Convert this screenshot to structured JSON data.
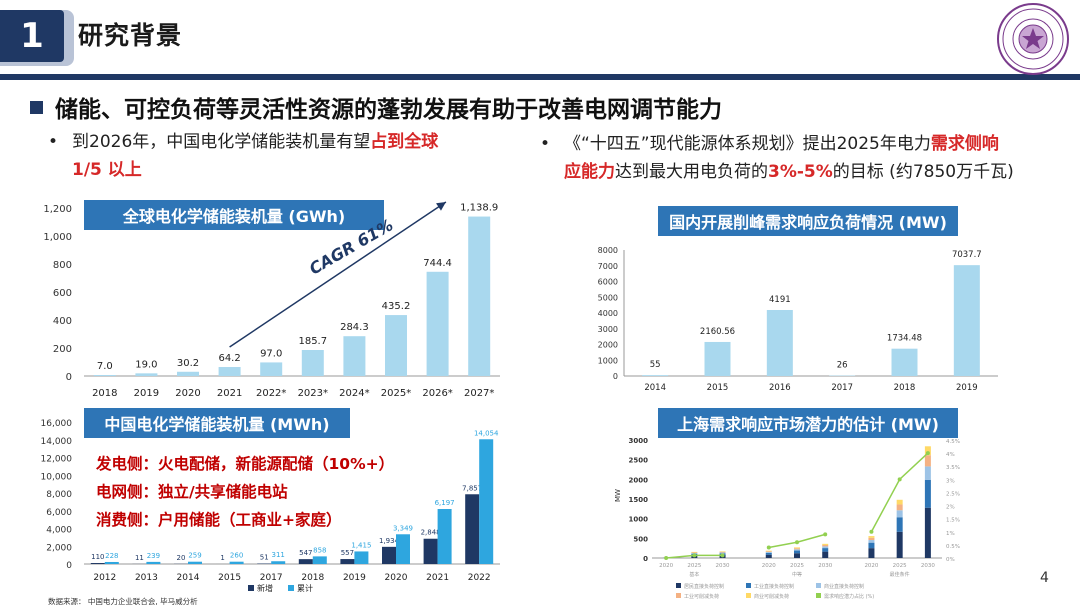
{
  "header": {
    "number": "1",
    "title": "研究背景"
  },
  "headline": "储能、可控负荷等灵活性资源的蓬勃发展有助于改善电网调节能力",
  "left_bullet": {
    "dot": "•",
    "pre": "到2026年，中国电化学储能装机量有望",
    "red": "占到全球",
    "line2_red": "1/5 以上"
  },
  "right_bullet": {
    "dot": "•",
    "pre": "《“十四五”现代能源体系规划》提出2025年电力",
    "red1": "需求侧响",
    "red1b": "应能力",
    "mid": "达到最大用电负荷的",
    "red2": "3%-5%",
    "post": "的目标 (约7850万千瓦)"
  },
  "chart1": {
    "title": "全球电化学储能装机量 (GWh)",
    "annotation": "CAGR 61%",
    "chart_data": {
      "type": "bar",
      "categories": [
        "2018",
        "2019",
        "2020",
        "2021",
        "2022*",
        "2023*",
        "2024*",
        "2025*",
        "2026*",
        "2027*"
      ],
      "values": [
        7.0,
        19.0,
        30.2,
        64.2,
        97.0,
        185.7,
        284.3,
        435.2,
        744.4,
        1138.9
      ],
      "labels": [
        "7.0",
        "19.0",
        "30.2",
        "64.2",
        "97.0",
        "185.7",
        "284.3",
        "435.2",
        "744.4",
        "1,138.9"
      ],
      "yticks": [
        "0",
        "200",
        "400",
        "600",
        "800",
        "1,000",
        "1,200"
      ],
      "ylim": [
        0,
        1200
      ],
      "color": "#a9d8ee"
    }
  },
  "chart2": {
    "title": "国内开展削峰需求响应负荷情况 (MW)",
    "chart_data": {
      "type": "bar",
      "categories": [
        "2014",
        "2015",
        "2016",
        "2017",
        "2018",
        "2019"
      ],
      "values": [
        55,
        2160.56,
        4191,
        26,
        1734.48,
        7037.7
      ],
      "labels": [
        "55",
        "2160.56",
        "4191",
        "26",
        "1734.48",
        "7037.7"
      ],
      "yticks": [
        "0",
        "1000",
        "2000",
        "3000",
        "4000",
        "5000",
        "6000",
        "7000",
        "8000"
      ],
      "ylim": [
        0,
        8000
      ],
      "color": "#a9d8ee"
    }
  },
  "chart3": {
    "title": "中国电化学储能装机量 (MWh)",
    "notes": [
      "发电侧：火电配储，新能源配储（10%+）",
      "电网侧：独立/共享储能电站",
      "消费侧：户用储能（工商业+家庭）"
    ],
    "chart_data": {
      "type": "bar",
      "categories": [
        "2012",
        "2013",
        "2014",
        "2015",
        "2017",
        "2018",
        "2019",
        "2020",
        "2021",
        "2022"
      ],
      "series": [
        {
          "name": "新增",
          "color": "#1f3864",
          "values": [
            110,
            11,
            20,
            1,
            51,
            547,
            557,
            1934,
            2848,
            7857
          ],
          "labels": [
            "110",
            "11",
            "20",
            "1",
            "51",
            "547",
            "557",
            "1,934",
            "2,848",
            "7,857"
          ]
        },
        {
          "name": "累计",
          "color": "#2ea6df",
          "values": [
            228,
            239,
            259,
            260,
            311,
            858,
            1415,
            3349,
            6197,
            14054
          ],
          "labels": [
            "228",
            "239",
            "259",
            "260",
            "311",
            "858",
            "1,415",
            "3,349",
            "6,197",
            "14,054"
          ]
        }
      ],
      "yticks": [
        "0",
        "2,000",
        "4,000",
        "6,000",
        "8,000",
        "10,000",
        "12,000",
        "14,000",
        "16,000"
      ],
      "ylim": [
        0,
        16000
      ]
    }
  },
  "chart4": {
    "title": "上海需求响应市场潜力的估计 (MW)",
    "chart_data": {
      "type": "bar",
      "ylabel": "MW",
      "yticks": [
        "0",
        "500",
        "1000",
        "1500",
        "2000",
        "2500",
        "3000"
      ],
      "y2ticks": [
        "0%",
        "0.5%",
        "1%",
        "1.5%",
        "2%",
        "2.5%",
        "3%",
        "3.5%",
        "4%",
        "4.5%"
      ],
      "ylim": [
        0,
        3000
      ],
      "groups": [
        "基本",
        "中等",
        "最佳条件"
      ],
      "x": [
        "2020",
        "2025",
        "2030",
        "2020",
        "2025",
        "2030",
        "2020",
        "2025",
        "2030"
      ],
      "totals": [
        13,
        155,
        170,
        186,
        270,
        360,
        557,
        1480,
        2840
      ],
      "line_pct": [
        0.0,
        0.1,
        0.1,
        0.4,
        0.6,
        0.9,
        1.0,
        3.0,
        4.0
      ],
      "legend": [
        "居民直接负荷控制",
        "工业直接负荷控制",
        "商业直接负荷控制",
        "工业可削减负荷",
        "商业可削减负荷",
        "需求响应潜力占比 (%)"
      ],
      "colors": [
        "#1f3864",
        "#2e75b6",
        "#9dc3e6",
        "#f4b183",
        "#ffd966",
        "#92d050"
      ]
    }
  },
  "legend3": [
    "新增",
    "累计"
  ],
  "source": "数据来源： 中国电力企业联合会, 毕马威分析",
  "page_number": "4"
}
